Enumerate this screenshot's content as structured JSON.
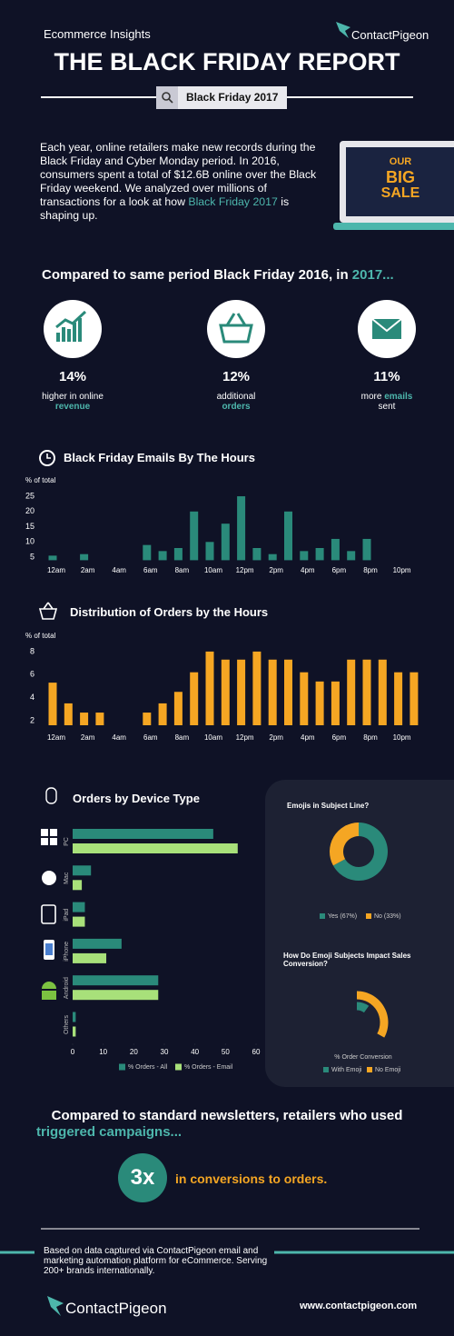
{
  "header": {
    "kicker": "Ecommerce Insights",
    "title": "THE BLACK FRIDAY REPORT",
    "brand": "ContactPigeon",
    "search": "Black Friday 2017"
  },
  "intro": {
    "before": "Each year, online retailers make new records during the Black Friday and Cyber Monday period. In 2016, consumers spent a total of $12.6B online over the Black Friday weekend. We analyzed over millions of transactions for a look at how ",
    "highlight": "Black Friday 2017",
    "after": " is shaping up."
  },
  "promo": [
    "OUR",
    "BIG",
    "SALE"
  ],
  "comparison": {
    "heading": "Compared to same period Black Friday 2016, in ",
    "highlight": "2017...",
    "stats": [
      {
        "value": "14%",
        "line1": "higher in online",
        "line2": "revenue"
      },
      {
        "value": "12%",
        "line1": "additional",
        "line2": "orders"
      },
      {
        "value": "11%",
        "line1": "more",
        "line1_highlight": "emails",
        "line2": "sent"
      }
    ]
  },
  "chart_data": [
    {
      "type": "bar",
      "title": "Black Friday Emails By The Hours",
      "y_label": "% of total",
      "categories": [
        "12am",
        null,
        "2am",
        null,
        "4am",
        null,
        "6am",
        null,
        "8am",
        null,
        "10am",
        null,
        "12pm",
        null,
        "2pm",
        null,
        "4pm",
        null,
        "6pm",
        null,
        "8pm",
        null,
        "10pm",
        null
      ],
      "values": [
        5.5,
        null,
        6,
        null,
        null,
        null,
        9,
        7,
        8,
        20,
        10,
        16,
        25,
        8,
        6,
        20,
        7,
        8,
        11,
        7,
        11,
        null,
        null,
        null
      ],
      "color": "#2a8a7a",
      "ylim": [
        4,
        26
      ],
      "yticks": [
        5,
        10,
        15,
        20,
        25
      ]
    },
    {
      "type": "bar",
      "title": "Distribution of Orders by the Hours",
      "y_label": "% of total",
      "categories": [
        "12am",
        null,
        "2am",
        null,
        "4am",
        null,
        "6am",
        null,
        "8am",
        null,
        "10am",
        null,
        "12pm",
        null,
        "2pm",
        null,
        "4pm",
        null,
        "6pm",
        null,
        "8pm",
        null,
        "10pm",
        null
      ],
      "values": [
        5.3,
        3.5,
        2.7,
        2.7,
        null,
        null,
        2.7,
        3.5,
        4.5,
        6.2,
        8,
        7.3,
        7.3,
        8,
        7.3,
        7.3,
        6.2,
        5.4,
        5.4,
        7.3,
        7.3,
        7.3,
        6.2,
        6.2
      ],
      "color": "#f5a623",
      "ylim": [
        1.6,
        8.6
      ],
      "yticks": [
        2,
        4,
        6,
        8
      ]
    },
    {
      "type": "hbar",
      "title": "Orders by Device Type",
      "categories": [
        "PC",
        "Mac",
        "iPad",
        "iPhone",
        "Android",
        "Others"
      ],
      "series": [
        {
          "name": "% Orders - All",
          "color": "#2a8a7a",
          "values": [
            46,
            6,
            4,
            16,
            28,
            1
          ]
        },
        {
          "name": "% Orders - Email",
          "color": "#a8e07a",
          "values": [
            54,
            3,
            4,
            11,
            28,
            1
          ]
        }
      ],
      "xlim": [
        0,
        60
      ],
      "xticks": [
        0,
        10,
        20,
        30,
        40,
        50,
        60
      ]
    },
    {
      "type": "donut",
      "title": "Emojis in Subject Line?",
      "categories": [
        "Yes (67%)",
        "No (33%)"
      ],
      "values": [
        67,
        33
      ],
      "colors": [
        "#2a8a7a",
        "#f5a623"
      ]
    },
    {
      "type": "radial_bar",
      "title": "How Do Emoji Subjects Impact Sales Conversion?",
      "x_label": "% Order Conversion",
      "categories": [
        "With Emoji",
        "No Emoji"
      ],
      "values": [
        10,
        33
      ],
      "colors": [
        "#2a8a7a",
        "#f5a623"
      ]
    }
  ],
  "triggered": {
    "line1": "Compared to standard newsletters, retailers who used",
    "line2": "triggered campaigns...",
    "multiplier": "3x",
    "result": "in conversions to orders."
  },
  "footer": {
    "note": "Based on data captured via ContactPigeon email and marketing automation platform for eCommerce. Serving 200+ brands internationally.",
    "brand": "ContactPigeon",
    "url": "www.contactpigeon.com"
  }
}
